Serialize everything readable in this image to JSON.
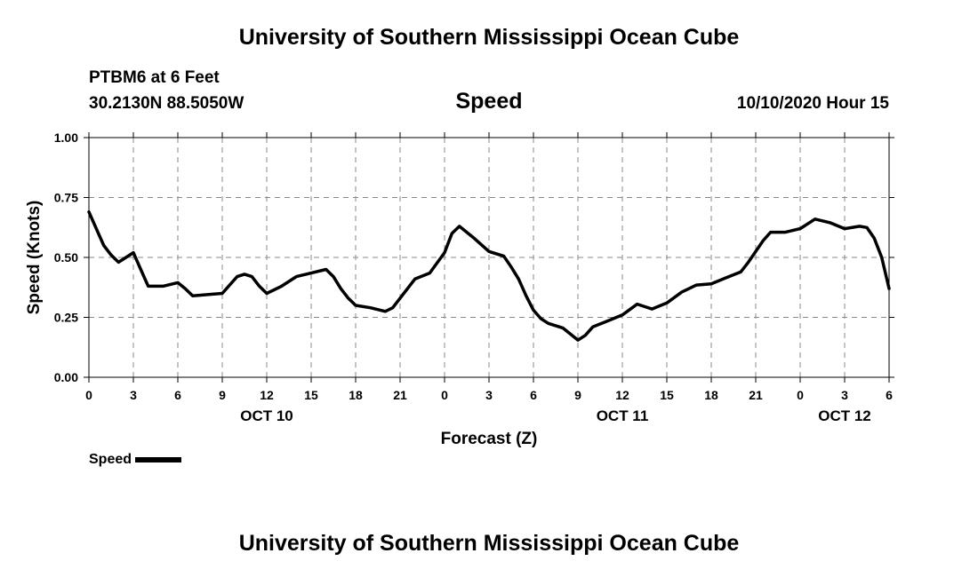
{
  "header": {
    "title": "University of Southern Mississippi Ocean Cube",
    "station": "PTBM6 at 6 Feet",
    "coords": "30.2130N 88.5050W",
    "chart_title": "Speed",
    "datetime": "10/10/2020 Hour 15"
  },
  "footer": {
    "title": "University of Southern Mississippi Ocean Cube"
  },
  "legend": {
    "label": "Speed",
    "color": "#000000"
  },
  "chart_data": {
    "type": "line",
    "title": "Speed",
    "xlabel": "Forecast (Z)",
    "ylabel": "Speed (Knots)",
    "xlim": [
      0,
      54
    ],
    "ylim": [
      0,
      1
    ],
    "grid": true,
    "legend_position": "bottom-left",
    "yticks": [
      0,
      0.25,
      0.5,
      0.75,
      1.0
    ],
    "ytick_labels": [
      "0.00",
      "0.25",
      "0.50",
      "0.75",
      "1.00"
    ],
    "xticks": [
      0,
      3,
      6,
      9,
      12,
      15,
      18,
      21,
      24,
      27,
      30,
      33,
      36,
      39,
      42,
      45,
      48,
      51,
      54
    ],
    "xtick_labels": [
      "0",
      "3",
      "6",
      "9",
      "12",
      "15",
      "18",
      "21",
      "0",
      "3",
      "6",
      "9",
      "12",
      "15",
      "18",
      "21",
      "0",
      "3",
      "6"
    ],
    "date_labels": [
      {
        "x": 12,
        "label": "OCT 10"
      },
      {
        "x": 36,
        "label": "OCT 11"
      },
      {
        "x": 51,
        "label": "OCT 12"
      }
    ],
    "series": [
      {
        "name": "Speed",
        "color": "#000000",
        "x": [
          0,
          0.5,
          1,
          1.5,
          2,
          2.5,
          3,
          3.5,
          4,
          5,
          6,
          6.5,
          7,
          8,
          9,
          9.5,
          10,
          10.5,
          11,
          11.5,
          12,
          13,
          14,
          15,
          16,
          16.5,
          17,
          17.5,
          18,
          19,
          20,
          20.5,
          21,
          22,
          23,
          24,
          24.5,
          25,
          26,
          27,
          28,
          28.5,
          29,
          29.5,
          30,
          30.5,
          31,
          32,
          32.5,
          33,
          33.5,
          34,
          35,
          36,
          37,
          37.5,
          38,
          39,
          40,
          41,
          42,
          43,
          44,
          44.5,
          45,
          45.5,
          46,
          47,
          48,
          49,
          50,
          51,
          52,
          52.5,
          53,
          53.5,
          54
        ],
        "values": [
          0.69,
          0.62,
          0.55,
          0.51,
          0.48,
          0.5,
          0.52,
          0.45,
          0.38,
          0.38,
          0.395,
          0.37,
          0.34,
          0.345,
          0.35,
          0.385,
          0.42,
          0.43,
          0.42,
          0.38,
          0.35,
          0.38,
          0.42,
          0.435,
          0.45,
          0.42,
          0.37,
          0.33,
          0.3,
          0.29,
          0.275,
          0.29,
          0.33,
          0.41,
          0.435,
          0.52,
          0.6,
          0.63,
          0.58,
          0.525,
          0.505,
          0.46,
          0.41,
          0.34,
          0.28,
          0.245,
          0.225,
          0.205,
          0.18,
          0.155,
          0.175,
          0.21,
          0.235,
          0.26,
          0.305,
          0.295,
          0.285,
          0.31,
          0.355,
          0.385,
          0.39,
          0.415,
          0.44,
          0.48,
          0.525,
          0.57,
          0.605,
          0.605,
          0.62,
          0.66,
          0.645,
          0.62,
          0.63,
          0.625,
          0.58,
          0.5,
          0.37
        ]
      }
    ]
  }
}
